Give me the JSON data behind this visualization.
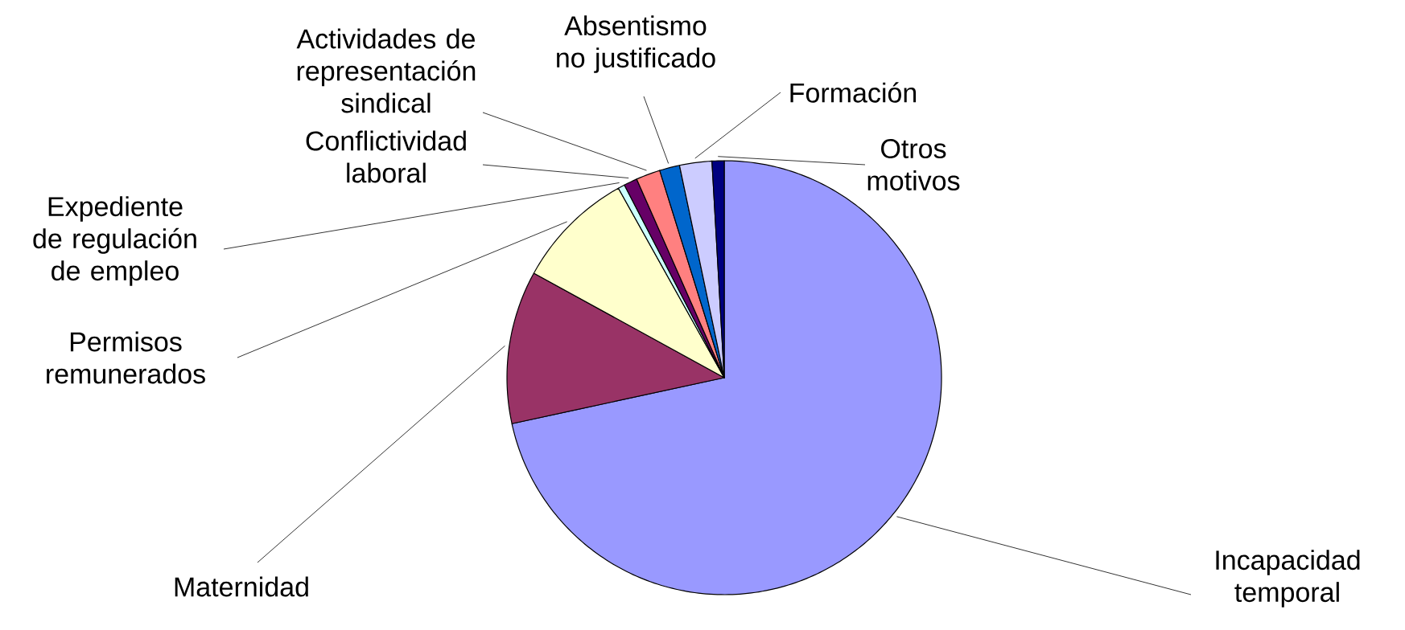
{
  "chart_data": {
    "type": "pie",
    "categories": [
      "Incapacidad temporal",
      "Maternidad",
      "Permisos remunerados",
      "Expediente de regulación de empleo",
      "Conflictividad laboral",
      "Actividades de representación sindical",
      "Absentismo no justificado",
      "Formación",
      "Otros motivos"
    ],
    "values": [
      71.6,
      11.4,
      8.9,
      0.5,
      1.0,
      1.8,
      1.5,
      2.4,
      0.9
    ],
    "colors": [
      "#9999ff",
      "#993366",
      "#ffffcc",
      "#ccffff",
      "#660066",
      "#ff8080",
      "#0066cc",
      "#ccccff",
      "#000080"
    ]
  }
}
